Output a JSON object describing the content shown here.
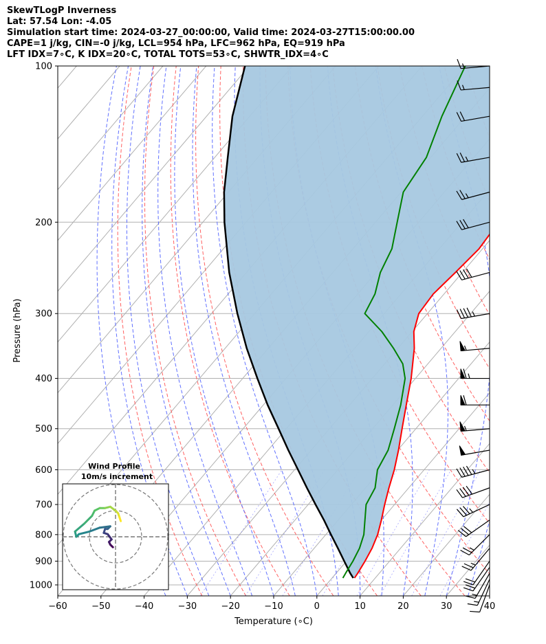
{
  "header": {
    "line1": "SkewTLogP Inverness",
    "line2": "Lat: 57.54   Lon: -4.05",
    "line3": "Simulation start time: 2024-03-27_00:00:00, Valid time: 2024-03-27T15:00:00.00",
    "line4": "CAPE=1 j/kg, CIN=-0 j/kg, LCL=954 hPa, LFC=962 hPa, EQ=919 hPa",
    "line5": "LFT IDX=7∘C, K IDX=20∘C, TOTAL TOTS=53∘C, SHWTR_IDX=4∘C"
  },
  "colors": {
    "temperature": "#ff0000",
    "dewpoint": "#008000",
    "parcel": "#000000",
    "cape_fill": "#a6c8e0",
    "dry_adiabats": "#ff6060",
    "moist_adiabats": "#6070ff",
    "mixing_ratio": "#8080ff",
    "isotherms": "#b0b0b0",
    "isobars": "#b0b0b0"
  },
  "chart_data": {
    "type": "line",
    "subtype": "skew-T log-P",
    "xlabel": "Temperature (∘C)",
    "ylabel": "Pressure (hPa)",
    "xlim": [
      -60,
      40
    ],
    "ylim": [
      1050,
      100
    ],
    "y_scale": "log",
    "x_ticks": [
      -60,
      -50,
      -40,
      -30,
      -20,
      -10,
      0,
      10,
      20,
      30,
      40
    ],
    "y_ticks": [
      1000,
      900,
      800,
      700,
      600,
      500,
      400,
      300,
      200,
      100
    ],
    "grid": true,
    "series": [
      {
        "key": "temperature",
        "pressure": [
          970,
          950,
          900,
          850,
          800,
          750,
          700,
          650,
          600,
          550,
          500,
          450,
          400,
          350,
          325,
          300,
          275,
          250,
          225,
          200,
          175,
          150,
          125,
          110,
          100
        ],
        "temperature": [
          5.2,
          5.0,
          4.3,
          3.4,
          2.0,
          0.0,
          -2.3,
          -4.6,
          -6.9,
          -9.8,
          -13.2,
          -16.9,
          -21.0,
          -26.2,
          -29.6,
          -32.0,
          -32.5,
          -31.6,
          -30.8,
          -31.5,
          -31.0,
          -33.0,
          -36.0,
          -37.7,
          -39.0
        ]
      },
      {
        "key": "dewpoint",
        "pressure": [
          970,
          950,
          900,
          850,
          800,
          750,
          700,
          650,
          600,
          550,
          500,
          450,
          400,
          375,
          350,
          325,
          300,
          275,
          250,
          225,
          200,
          175,
          150,
          125,
          100
        ],
        "temperature": [
          2.5,
          2.2,
          1.5,
          0.5,
          -1.2,
          -3.8,
          -6.6,
          -7.8,
          -10.8,
          -12.2,
          -15.0,
          -18.2,
          -22.4,
          -25.8,
          -31.0,
          -37.0,
          -44.5,
          -46.0,
          -49.0,
          -51.0,
          -55.0,
          -59.5,
          -61.0,
          -65.5,
          -70.0
        ]
      },
      {
        "key": "parcel",
        "pressure": [
          970,
          950,
          900,
          850,
          800,
          750,
          700,
          650,
          600,
          550,
          500,
          450,
          400,
          350,
          300,
          250,
          200,
          175,
          150,
          125,
          100
        ],
        "temperature": [
          4.9,
          3.3,
          -0.5,
          -4.5,
          -8.8,
          -13.3,
          -18.3,
          -23.6,
          -29.2,
          -35.3,
          -41.8,
          -49.0,
          -56.6,
          -65.0,
          -74.0,
          -84.0,
          -95.0,
          -101.0,
          -107.0,
          -114.0,
          -121.0
        ]
      }
    ],
    "winds": {
      "pressure": [
        1000,
        975,
        950,
        925,
        900,
        850,
        800,
        750,
        700,
        650,
        600,
        550,
        500,
        450,
        400,
        350,
        300,
        250,
        200,
        175,
        150,
        125,
        110,
        100
      ],
      "speed_kt": [
        12,
        15,
        18,
        20,
        22,
        25,
        28,
        30,
        35,
        40,
        45,
        50,
        55,
        60,
        65,
        55,
        45,
        40,
        30,
        28,
        25,
        20,
        18,
        15
      ],
      "direction_deg": [
        200,
        205,
        210,
        215,
        215,
        220,
        225,
        235,
        245,
        250,
        255,
        260,
        265,
        270,
        270,
        265,
        260,
        255,
        255,
        255,
        260,
        260,
        265,
        265
      ]
    },
    "hodograph": {
      "title": "Wind Profile",
      "subtitle": "10m/s increment",
      "u": [
        -1,
        -2,
        -2.5,
        -1.5,
        -3,
        -4.5,
        -4,
        -3,
        -2,
        -6,
        -10,
        -14,
        -15,
        -15.5,
        -12,
        -9,
        -8,
        -6,
        -4,
        -2,
        0,
        1,
        1.5,
        2
      ],
      "v": [
        -4,
        -3,
        -2,
        -1,
        1,
        1.5,
        3,
        3,
        4,
        3.5,
        2,
        1,
        0,
        2,
        5,
        8,
        10,
        11,
        11,
        11.5,
        10,
        9,
        7.5,
        6
      ]
    }
  }
}
